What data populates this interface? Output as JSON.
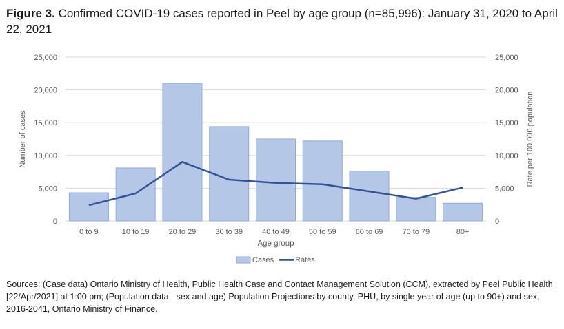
{
  "figure": {
    "label": "Figure 3.",
    "caption": "Confirmed COVID-19 cases reported in Peel by age group (n=85,996): January 31, 2020 to April 22, 2021"
  },
  "source": {
    "prefix": "Sources:",
    "text": "(Case data) Ontario Ministry of Health, Public Health Case and Contact Management Solution (CCM), extracted by Peel Public Health [22/Apr/2021] at 1:00 pm; (Population data - sex and age) Population Projections by county, PHU, by single year of age (up to 90+) and sex, 2016-2041, Ontario Ministry of Finance."
  },
  "chart_data": {
    "type": "bar",
    "categories": [
      "0 to 9",
      "10 to 19",
      "20 to 29",
      "30 to 39",
      "40 to 49",
      "50 to 59",
      "60 to 69",
      "70 to 79",
      "80+"
    ],
    "series": [
      {
        "name": "Cases",
        "type": "bar",
        "axis": "left",
        "values": [
          4300,
          8100,
          21000,
          14400,
          12500,
          12200,
          7600,
          3600,
          2700
        ]
      },
      {
        "name": "Rates",
        "type": "line",
        "axis": "right",
        "values": [
          2400,
          4200,
          9000,
          6300,
          5800,
          5600,
          4500,
          3400,
          5100
        ]
      }
    ],
    "xlabel": "Age group",
    "ylabel": "Number of cases",
    "y2label": "Rate per 100,000 population",
    "ylim": [
      0,
      25000
    ],
    "y2lim": [
      0,
      25000
    ],
    "yticks": [
      "0",
      "5,000",
      "10,000",
      "15,000",
      "20,000",
      "25,000"
    ],
    "y2ticks": [
      "0",
      "5,000",
      "10,000",
      "15,000",
      "20,000",
      "25,000"
    ],
    "grid": true,
    "legend_position": "bottom",
    "colors": {
      "bar_fill": "#b4c7e7",
      "bar_stroke": "#8faadc",
      "line": "#2f5597",
      "grid": "#d9d9d9",
      "axis_text": "#595959"
    }
  }
}
